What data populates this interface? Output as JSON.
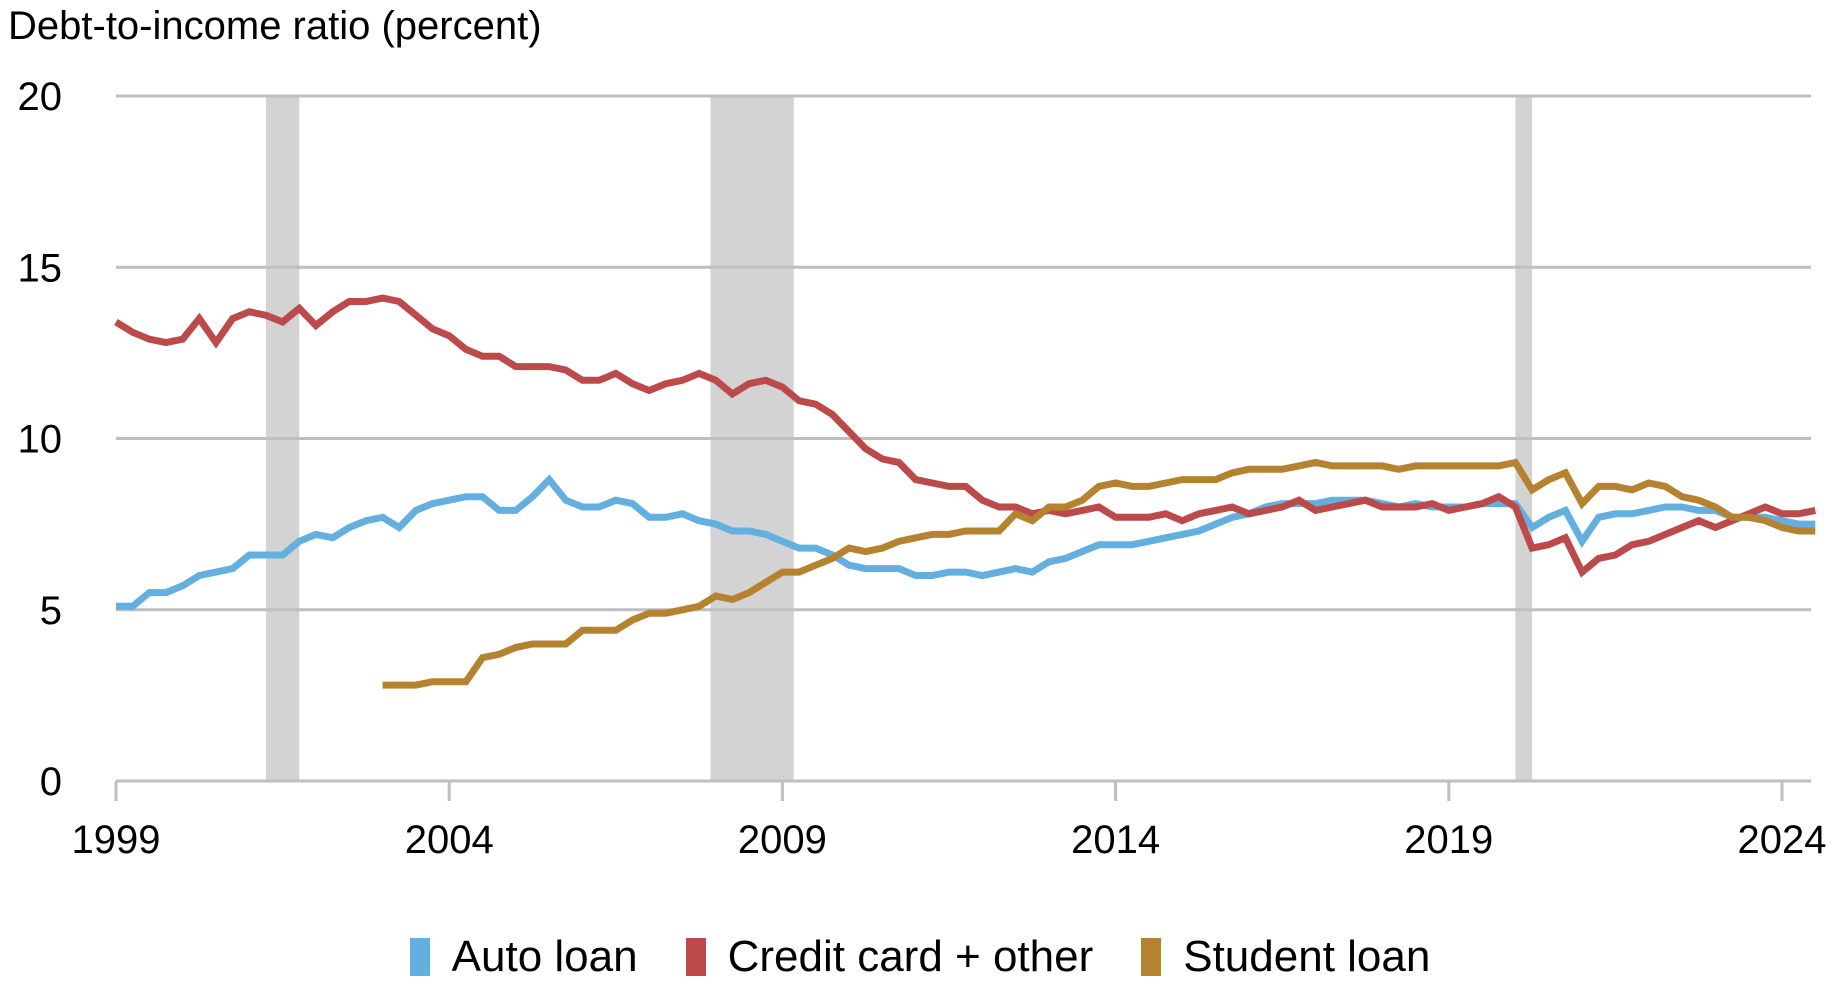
{
  "chart_data": {
    "type": "line",
    "title": "",
    "ylabel": "Debt-to-income ratio (percent)",
    "xlabel": "",
    "ylim": [
      0,
      20
    ],
    "yticks": [
      0,
      5,
      10,
      15,
      20
    ],
    "xlim": [
      1999,
      2024.55
    ],
    "xticks": [
      1999,
      2004,
      2009,
      2014,
      2019,
      2024
    ],
    "grid": true,
    "legend_position": "bottom",
    "frequency": "quarterly",
    "x_start": 1999.0,
    "recession_bands": [
      [
        2001.25,
        2001.75
      ],
      [
        2007.92,
        2009.17
      ],
      [
        2020.0,
        2020.25
      ]
    ],
    "series": [
      {
        "name": "Auto loan",
        "color": "#63B0E0",
        "start": 1999.0,
        "values": [
          5.1,
          5.1,
          5.5,
          5.5,
          5.7,
          6.0,
          6.1,
          6.2,
          6.6,
          6.6,
          6.6,
          7.0,
          7.2,
          7.1,
          7.4,
          7.6,
          7.7,
          7.4,
          7.9,
          8.1,
          8.2,
          8.3,
          8.3,
          7.9,
          7.9,
          8.3,
          8.8,
          8.2,
          8.0,
          8.0,
          8.2,
          8.1,
          7.7,
          7.7,
          7.8,
          7.6,
          7.5,
          7.3,
          7.3,
          7.2,
          7.0,
          6.8,
          6.8,
          6.6,
          6.3,
          6.2,
          6.2,
          6.2,
          6.0,
          6.0,
          6.1,
          6.1,
          6.0,
          6.1,
          6.2,
          6.1,
          6.4,
          6.5,
          6.7,
          6.9,
          6.9,
          6.9,
          7.0,
          7.1,
          7.2,
          7.3,
          7.5,
          7.7,
          7.8,
          8.0,
          8.1,
          8.1,
          8.1,
          8.2,
          8.2,
          8.2,
          8.1,
          8.0,
          8.1,
          8.0,
          8.0,
          8.0,
          8.1,
          8.1,
          8.1,
          7.4,
          7.7,
          7.9,
          7.0,
          7.7,
          7.8,
          7.8,
          7.9,
          8.0,
          8.0,
          7.9,
          7.9,
          7.7,
          7.7,
          7.7,
          7.6,
          7.5,
          7.5
        ]
      },
      {
        "name": "Credit card + other",
        "color": "#BD4A4A",
        "start": 1999.0,
        "values": [
          13.4,
          13.1,
          12.9,
          12.8,
          12.9,
          13.5,
          12.8,
          13.5,
          13.7,
          13.6,
          13.4,
          13.8,
          13.3,
          13.7,
          14.0,
          14.0,
          14.1,
          14.0,
          13.6,
          13.2,
          13.0,
          12.6,
          12.4,
          12.4,
          12.1,
          12.1,
          12.1,
          12.0,
          11.7,
          11.7,
          11.9,
          11.6,
          11.4,
          11.6,
          11.7,
          11.9,
          11.7,
          11.3,
          11.6,
          11.7,
          11.5,
          11.1,
          11.0,
          10.7,
          10.2,
          9.7,
          9.4,
          9.3,
          8.8,
          8.7,
          8.6,
          8.6,
          8.2,
          8.0,
          8.0,
          7.8,
          7.9,
          7.8,
          7.9,
          8.0,
          7.7,
          7.7,
          7.7,
          7.8,
          7.6,
          7.8,
          7.9,
          8.0,
          7.8,
          7.9,
          8.0,
          8.2,
          7.9,
          8.0,
          8.1,
          8.2,
          8.0,
          8.0,
          8.0,
          8.1,
          7.9,
          8.0,
          8.1,
          8.3,
          8.0,
          6.8,
          6.9,
          7.1,
          6.1,
          6.5,
          6.6,
          6.9,
          7.0,
          7.2,
          7.4,
          7.6,
          7.4,
          7.6,
          7.8,
          8.0,
          7.8,
          7.8,
          7.9
        ]
      },
      {
        "name": "Student loan",
        "color": "#B5832F",
        "start": 2003.0,
        "values": [
          2.8,
          2.8,
          2.8,
          2.9,
          2.9,
          2.9,
          3.6,
          3.7,
          3.9,
          4.0,
          4.0,
          4.0,
          4.4,
          4.4,
          4.4,
          4.7,
          4.9,
          4.9,
          5.0,
          5.1,
          5.4,
          5.3,
          5.5,
          5.8,
          6.1,
          6.1,
          6.3,
          6.5,
          6.8,
          6.7,
          6.8,
          7.0,
          7.1,
          7.2,
          7.2,
          7.3,
          7.3,
          7.3,
          7.8,
          7.6,
          8.0,
          8.0,
          8.2,
          8.6,
          8.7,
          8.6,
          8.6,
          8.7,
          8.8,
          8.8,
          8.8,
          9.0,
          9.1,
          9.1,
          9.1,
          9.2,
          9.3,
          9.2,
          9.2,
          9.2,
          9.2,
          9.1,
          9.2,
          9.2,
          9.2,
          9.2,
          9.2,
          9.2,
          9.3,
          8.5,
          8.8,
          9.0,
          8.1,
          8.6,
          8.6,
          8.5,
          8.7,
          8.6,
          8.3,
          8.2,
          8.0,
          7.7,
          7.7,
          7.6,
          7.4,
          7.3,
          7.3
        ]
      }
    ]
  },
  "axis": {
    "y_title": "Debt-to-income ratio (percent)",
    "y_tick_labels": [
      "0",
      "5",
      "10",
      "15",
      "20"
    ],
    "x_tick_labels": [
      "1999",
      "2004",
      "2009",
      "2014",
      "2019",
      "2024"
    ]
  },
  "legend": {
    "items": [
      {
        "label": "Auto loan",
        "color": "#63B0E0"
      },
      {
        "label": "Credit card + other",
        "color": "#BD4A4A"
      },
      {
        "label": "Student loan",
        "color": "#B5832F"
      }
    ]
  },
  "colors": {
    "grid": "#BFBFBF",
    "recession": "#D3D3D3",
    "axis": "#BFBFBF"
  }
}
